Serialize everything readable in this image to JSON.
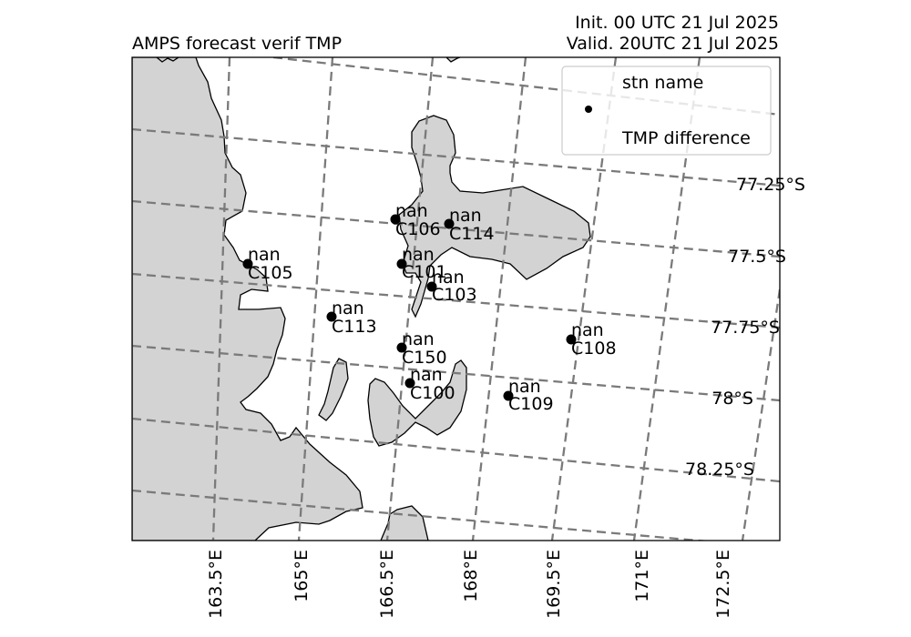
{
  "title_left": "AMPS forecast verif TMP",
  "title_right_line1": "Init. 00 UTC 21 Jul 2025",
  "title_right_line2": "Valid. 20UTC 21 Jul 2025",
  "legend": {
    "title": "stn name",
    "label": "TMP difference"
  },
  "latitude_labels": [
    "77.25°S",
    "77.5°S",
    "77.75°S",
    "78°S",
    "78.25°S"
  ],
  "longitude_labels": [
    "163.5°E",
    "165°E",
    "166.5°E",
    "168°E",
    "169.5°E",
    "171°E",
    "172.5°E"
  ],
  "stations": [
    {
      "name": "C106",
      "value": "nan"
    },
    {
      "name": "C114",
      "value": "nan"
    },
    {
      "name": "C105",
      "value": "nan"
    },
    {
      "name": "C101",
      "value": "nan"
    },
    {
      "name": "C103",
      "value": "nan"
    },
    {
      "name": "C113",
      "value": "nan"
    },
    {
      "name": "C150",
      "value": "nan"
    },
    {
      "name": "C108",
      "value": "nan"
    },
    {
      "name": "C100",
      "value": "nan"
    },
    {
      "name": "C109",
      "value": "nan"
    }
  ],
  "colors": {
    "land": "#d3d3d3",
    "coast": "#000000",
    "grid": "#7a7a7a",
    "station": "#000000"
  }
}
